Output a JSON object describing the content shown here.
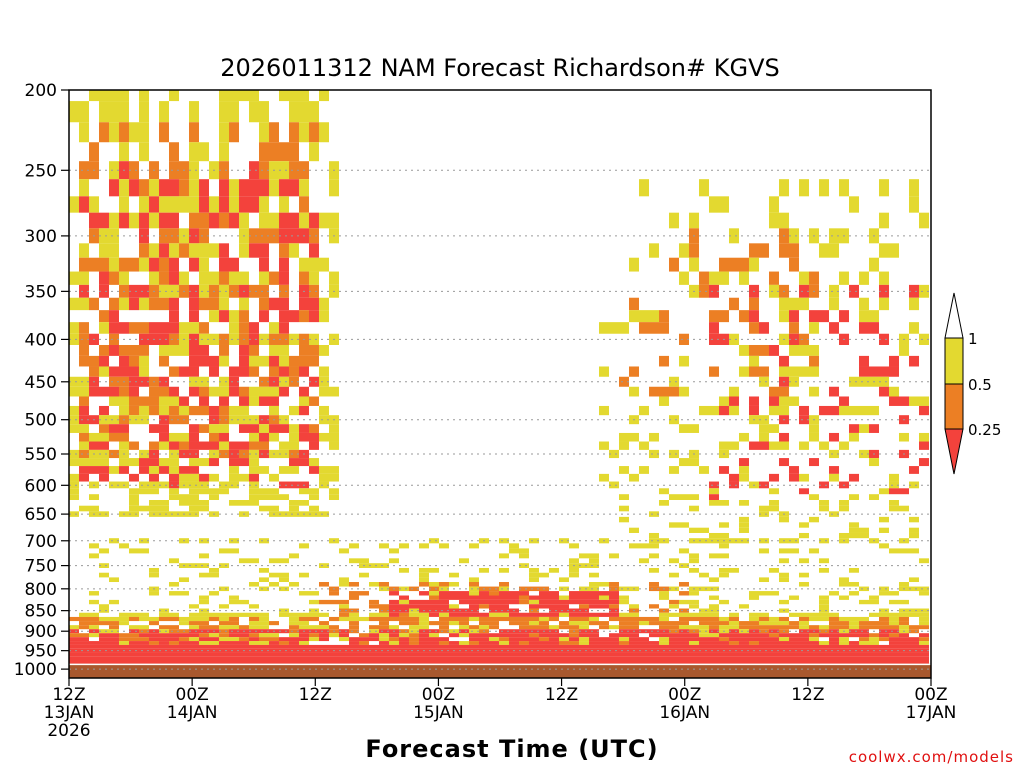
{
  "chart_data": {
    "type": "heatmap",
    "title": "2026011312 NAM Forecast Richardson# KGVS",
    "xlabel": "Forecast Time (UTC)",
    "ylabel": "",
    "y_scale": "log",
    "y_inverted": true,
    "ylim": [
      200,
      1025
    ],
    "y_ticks": [
      200,
      250,
      300,
      350,
      400,
      450,
      500,
      550,
      600,
      650,
      700,
      750,
      800,
      850,
      900,
      950,
      1000
    ],
    "xlim_hours": [
      0,
      84
    ],
    "x_ticks": [
      {
        "hour": 0,
        "line1": "12Z",
        "line2": "13JAN",
        "line3": "2026"
      },
      {
        "hour": 12,
        "line1": "00Z",
        "line2": "14JAN",
        "line3": ""
      },
      {
        "hour": 24,
        "line1": "12Z",
        "line2": "",
        "line3": ""
      },
      {
        "hour": 36,
        "line1": "00Z",
        "line2": "15JAN",
        "line3": ""
      },
      {
        "hour": 48,
        "line1": "12Z",
        "line2": "",
        "line3": ""
      },
      {
        "hour": 60,
        "line1": "00Z",
        "line2": "16JAN",
        "line3": ""
      },
      {
        "hour": 72,
        "line1": "12Z",
        "line2": "",
        "line3": ""
      },
      {
        "hour": 84,
        "line1": "00Z",
        "line2": "17JAN",
        "line3": ""
      }
    ],
    "grid": "dotted horizontal at pressure ticks",
    "legend": {
      "placement": "right",
      "labels": [
        "1",
        "0.5",
        "0.25"
      ],
      "bins": [
        {
          "range": "> 1",
          "color": "#ffffff"
        },
        {
          "range": "0.5 - 1",
          "color": "#e3d930"
        },
        {
          "range": "0.25 - 0.5",
          "color": "#ec7f24"
        },
        {
          "range": "< 0.25",
          "color": "#f3423c"
        }
      ]
    },
    "ground_color": "#a8582e",
    "regions": [
      {
        "level": 1,
        "hour_range": [
          0,
          26
        ],
        "p_range": [
          200,
          650
        ],
        "density": 0.5,
        "note": "upper-level patches day 1"
      },
      {
        "level": 2,
        "hour_range": [
          1,
          24
        ],
        "p_range": [
          220,
          560
        ],
        "density": 0.3
      },
      {
        "level": 3,
        "hour_range": [
          1,
          24
        ],
        "p_range": [
          240,
          600
        ],
        "density": 0.28
      },
      {
        "level": 1,
        "hour_range": [
          52,
          84
        ],
        "p_range": [
          260,
          700
        ],
        "density": 0.22,
        "note": "upper-level patches day 3"
      },
      {
        "level": 2,
        "hour_range": [
          54,
          73
        ],
        "p_range": [
          290,
          480
        ],
        "density": 0.15
      },
      {
        "level": 3,
        "hour_range": [
          62,
          84
        ],
        "p_range": [
          340,
          620
        ],
        "density": 0.14
      },
      {
        "level": 1,
        "hour_range": [
          2,
          84
        ],
        "p_range": [
          700,
          870
        ],
        "density": 0.22,
        "note": "mid-level band"
      },
      {
        "level": 3,
        "hour_range": [
          31,
          54
        ],
        "p_range": [
          810,
          860
        ],
        "density": 0.75,
        "note": "red arc ~15JAN"
      },
      {
        "level": 2,
        "hour_range": [
          24,
          60
        ],
        "p_range": [
          790,
          880
        ],
        "density": 0.25
      },
      {
        "level": 1,
        "hour_range": [
          0,
          84
        ],
        "p_range": [
          860,
          945
        ],
        "density": 0.55,
        "note": "boundary layer"
      },
      {
        "level": 2,
        "hour_range": [
          0,
          84
        ],
        "p_range": [
          870,
          950
        ],
        "density": 0.45
      },
      {
        "level": 3,
        "hour_range": [
          0,
          84
        ],
        "p_range": [
          900,
          965
        ],
        "density": 0.55
      },
      {
        "level": 3,
        "hour_range": [
          0,
          84
        ],
        "p_range": [
          940,
          990
        ],
        "density": 1.0,
        "note": "near-surface red layer"
      }
    ]
  },
  "credit": "coolwx.com/models"
}
